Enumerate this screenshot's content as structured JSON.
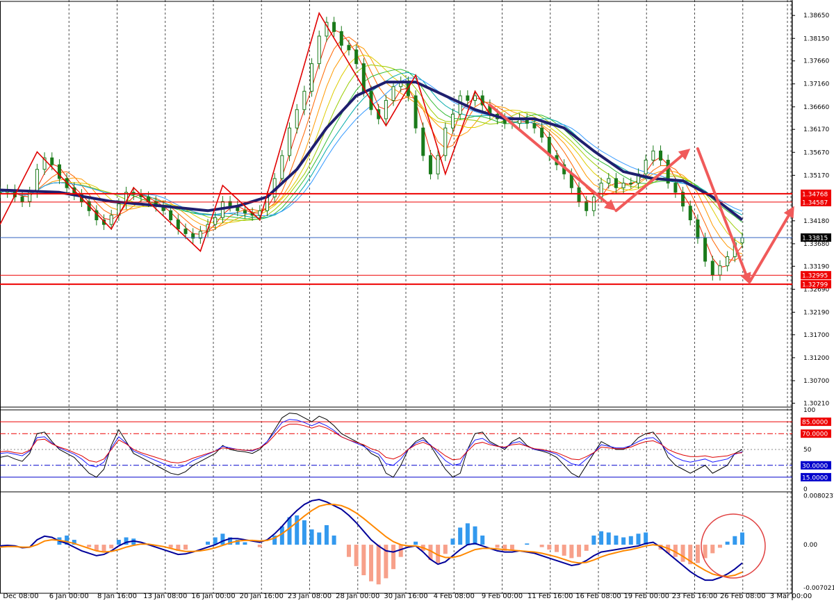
{
  "chart_data": [
    {
      "type": "candlestick",
      "panel": "price",
      "ylim": [
        1.30125,
        1.38895
      ],
      "y_ticks": [
        "1.38650",
        "1.38150",
        "1.37660",
        "1.37160",
        "1.36660",
        "1.36170",
        "1.35670",
        "1.35170",
        "1.34180",
        "1.33680",
        "1.33190",
        "1.32690",
        "1.32190",
        "1.31700",
        "1.31200",
        "1.30700",
        "1.30210"
      ],
      "time_labels": [
        "Dec 08:00",
        "6 Jan 00:00",
        "8 Jan 16:00",
        "13 Jan 08:00",
        "16 Jan 00:00",
        "20 Jan 16:00",
        "23 Jan 08:00",
        "28 Jan 00:00",
        "30 Jan 16:00",
        "4 Feb 08:00",
        "9 Feb 00:00",
        "11 Feb 16:00",
        "16 Feb 08:00",
        "19 Feb 00:00",
        "23 Feb 16:00",
        "26 Feb 08:00",
        "3 Mar 00:00"
      ],
      "close_path": [
        1.348,
        1.3485,
        1.347,
        1.346,
        1.348,
        1.353,
        1.3555,
        1.354,
        1.351,
        1.349,
        1.3475,
        1.346,
        1.344,
        1.342,
        1.341,
        1.343,
        1.3455,
        1.348,
        1.3475,
        1.347,
        1.346,
        1.345,
        1.344,
        1.342,
        1.34,
        1.339,
        1.338,
        1.3395,
        1.341,
        1.3425,
        1.346,
        1.345,
        1.344,
        1.3435,
        1.343,
        1.344,
        1.347,
        1.351,
        1.356,
        1.362,
        1.366,
        1.37,
        1.376,
        1.382,
        1.385,
        1.383,
        1.38,
        1.379,
        1.376,
        1.37,
        1.366,
        1.364,
        1.368,
        1.371,
        1.372,
        1.369,
        1.362,
        1.356,
        1.352,
        1.356,
        1.362,
        1.365,
        1.369,
        1.368,
        1.369,
        1.367,
        1.365,
        1.364,
        1.363,
        1.363,
        1.364,
        1.363,
        1.362,
        1.36,
        1.356,
        1.354,
        1.352,
        1.349,
        1.346,
        1.344,
        1.347,
        1.35,
        1.351,
        1.349,
        1.35,
        1.35,
        1.352,
        1.355,
        1.357,
        1.355,
        1.35,
        1.348,
        1.345,
        1.342,
        1.338,
        1.333,
        1.33,
        1.332,
        1.334,
        1.337,
        1.3381
      ],
      "moving_averages": [
        {
          "name": "",
          "color": "#1f1f6e",
          "width": 4,
          "points": [
            [
              0,
              1.3485
            ],
            [
              8,
              1.348
            ],
            [
              15,
              1.346
            ],
            [
              22,
              1.345
            ],
            [
              28,
              1.344
            ],
            [
              32,
              1.345
            ],
            [
              36,
              1.347
            ],
            [
              40,
              1.353
            ],
            [
              44,
              1.362
            ],
            [
              48,
              1.369
            ],
            [
              52,
              1.372
            ],
            [
              56,
              1.372
            ],
            [
              60,
              1.369
            ],
            [
              64,
              1.366
            ],
            [
              68,
              1.364
            ],
            [
              72,
              1.364
            ],
            [
              76,
              1.362
            ],
            [
              80,
              1.357
            ],
            [
              84,
              1.3525
            ],
            [
              88,
              1.351
            ],
            [
              92,
              1.3505
            ],
            [
              96,
              1.347
            ],
            [
              100,
              1.342
            ]
          ]
        }
      ],
      "horizontal_levels": [
        {
          "value": 1.34768,
          "label": "1.34768",
          "color": "#ee0000",
          "width": 2
        },
        {
          "value": 1.34587,
          "label": "1.34587",
          "color": "#ee0000",
          "width": 1
        },
        {
          "value": 1.33815,
          "label": "1.33815",
          "color": "#3060c0",
          "width": 1,
          "current": true
        },
        {
          "value": 1.32995,
          "label": "1.32995",
          "color": "#ee0000",
          "width": 1
        },
        {
          "value": 1.32799,
          "label": "1.32799",
          "color": "#ee0000",
          "width": 2
        }
      ],
      "zigzag": [
        [
          0,
          1.341
        ],
        [
          5,
          1.3568
        ],
        [
          15,
          1.34
        ],
        [
          18,
          1.349
        ],
        [
          27,
          1.3352
        ],
        [
          30,
          1.3495
        ],
        [
          35,
          1.342
        ],
        [
          43,
          1.387
        ],
        [
          52,
          1.3625
        ],
        [
          56,
          1.3735
        ],
        [
          60,
          1.352
        ],
        [
          64,
          1.37
        ],
        [
          66,
          1.365
        ]
      ],
      "arrows": [
        {
          "from": [
            66,
            1.367
          ],
          "to": [
            83,
            1.344
          ]
        },
        {
          "from": [
            83,
            1.344
          ],
          "to": [
            93,
            1.3575
          ]
        },
        {
          "from": [
            94,
            1.3575
          ],
          "to": [
            101,
            1.328
          ]
        },
        {
          "from": [
            101,
            1.3285
          ],
          "to": [
            107,
            1.345
          ]
        }
      ]
    },
    {
      "type": "line",
      "panel": "oscillator",
      "ylim": [
        0,
        100
      ],
      "y_ticks": [
        "100",
        "50",
        "0"
      ],
      "levels": [
        {
          "value": 85,
          "label": "85.0000",
          "color": "#ee0000"
        },
        {
          "value": 70,
          "label": "70.0000",
          "color": "#ee0000"
        },
        {
          "value": 30,
          "label": "30.0000",
          "color": "#0000cc"
        },
        {
          "value": 15,
          "label": "15.0000",
          "color": "#0000cc"
        }
      ],
      "series": [
        {
          "color": "#000000",
          "values": [
            40,
            42,
            38,
            35,
            45,
            70,
            72,
            60,
            50,
            45,
            40,
            30,
            20,
            15,
            25,
            55,
            75,
            60,
            45,
            40,
            35,
            30,
            25,
            20,
            18,
            22,
            30,
            35,
            40,
            45,
            55,
            50,
            48,
            47,
            45,
            50,
            60,
            75,
            90,
            96,
            95,
            90,
            85,
            92,
            88,
            80,
            70,
            65,
            60,
            55,
            45,
            40,
            20,
            15,
            30,
            50,
            60,
            65,
            55,
            40,
            25,
            15,
            20,
            50,
            70,
            72,
            60,
            55,
            50,
            60,
            65,
            55,
            50,
            48,
            45,
            40,
            30,
            20,
            15,
            30,
            45,
            60,
            55,
            50,
            50,
            55,
            65,
            70,
            72,
            60,
            40,
            30,
            25,
            20,
            25,
            30,
            20,
            25,
            30,
            45,
            50
          ]
        },
        {
          "color": "#1a1aff",
          "values": [
            45,
            46,
            44,
            42,
            48,
            65,
            66,
            58,
            52,
            48,
            44,
            38,
            30,
            28,
            34,
            52,
            66,
            58,
            48,
            44,
            40,
            36,
            32,
            28,
            27,
            30,
            36,
            40,
            44,
            48,
            54,
            52,
            50,
            49,
            48,
            52,
            60,
            72,
            84,
            88,
            87,
            84,
            80,
            84,
            80,
            74,
            66,
            62,
            58,
            54,
            48,
            44,
            32,
            30,
            38,
            50,
            58,
            62,
            56,
            46,
            36,
            30,
            32,
            50,
            62,
            64,
            58,
            54,
            52,
            58,
            60,
            54,
            50,
            49,
            47,
            44,
            38,
            32,
            30,
            38,
            46,
            56,
            54,
            52,
            52,
            55,
            60,
            64,
            65,
            58,
            46,
            40,
            36,
            34,
            36,
            38,
            34,
            36,
            38,
            44,
            47
          ]
        },
        {
          "color": "#dd0000",
          "values": [
            47,
            48,
            46,
            45,
            49,
            62,
            63,
            57,
            53,
            50,
            46,
            42,
            36,
            34,
            38,
            50,
            62,
            57,
            50,
            46,
            43,
            40,
            37,
            34,
            33,
            35,
            39,
            42,
            45,
            48,
            52,
            51,
            50,
            49,
            49,
            52,
            58,
            68,
            78,
            82,
            82,
            80,
            77,
            80,
            77,
            72,
            66,
            62,
            59,
            56,
            51,
            48,
            40,
            38,
            42,
            50,
            56,
            59,
            55,
            49,
            42,
            37,
            38,
            48,
            57,
            59,
            56,
            54,
            53,
            56,
            57,
            54,
            51,
            50,
            48,
            46,
            42,
            38,
            37,
            41,
            46,
            53,
            52,
            51,
            51,
            53,
            57,
            60,
            61,
            57,
            50,
            46,
            43,
            41,
            41,
            42,
            40,
            41,
            42,
            45,
            46
          ]
        }
      ]
    },
    {
      "type": "bar",
      "panel": "macd",
      "ylim": [
        -0.0075,
        0.0082
      ],
      "y_ticks": [
        "0.0080237",
        "0.00",
        "-0.007021"
      ],
      "histogram": [
        0,
        0,
        0,
        0,
        0,
        0,
        0,
        0,
        0.0012,
        0.0015,
        0.0008,
        0,
        -0.0004,
        -0.001,
        -0.0012,
        -0.0006,
        0.0008,
        0.0012,
        0.001,
        0,
        0,
        0,
        0,
        -0.0005,
        -0.001,
        -0.0008,
        0,
        0,
        0.0005,
        0.0012,
        0.0018,
        0.0012,
        0.0008,
        0.0004,
        0,
        -0.0004,
        0,
        0.0015,
        0.003,
        0.0045,
        0.0048,
        0.004,
        0.0025,
        0.002,
        0.0032,
        0.0015,
        0,
        -0.002,
        -0.0035,
        -0.005,
        -0.006,
        -0.0065,
        -0.0055,
        -0.004,
        -0.002,
        0,
        0.0005,
        -0.001,
        -0.0025,
        -0.003,
        -0.0015,
        0.001,
        0.0028,
        0.0035,
        0.003,
        0.0015,
        0,
        -0.0005,
        -0.001,
        -0.0008,
        0,
        0.0002,
        0,
        -0.0004,
        -0.0008,
        -0.0012,
        -0.0018,
        -0.0022,
        -0.002,
        -0.001,
        0.0015,
        0.0022,
        0.002,
        0.0015,
        0.0012,
        0.0014,
        0.0018,
        0.002,
        0,
        -0.0008,
        -0.0014,
        -0.002,
        -0.0028,
        -0.0032,
        -0.003,
        -0.0022,
        -0.0014,
        -0.0005,
        0.0005,
        0.0014,
        0.002
      ],
      "series": [
        {
          "color": "#000099",
          "values": [
            -0.0002,
            -0.0001,
            -0.0002,
            -0.0005,
            -0.0004,
            0.0008,
            0.0014,
            0.0012,
            0.0006,
            0.0002,
            -0.0004,
            -0.001,
            -0.0014,
            -0.0018,
            -0.0016,
            -0.001,
            -0.0002,
            0.0004,
            0.0006,
            0.0004,
            0,
            -0.0004,
            -0.0008,
            -0.0012,
            -0.0016,
            -0.0015,
            -0.0012,
            -0.0008,
            -0.0004,
            0,
            0.0006,
            0.001,
            0.001,
            0.0008,
            0.0006,
            0.0004,
            0.0008,
            0.0018,
            0.003,
            0.0044,
            0.0056,
            0.0066,
            0.0072,
            0.0074,
            0.007,
            0.0064,
            0.0058,
            0.0048,
            0.0036,
            0.0022,
            0.0008,
            -0.0002,
            -0.001,
            -0.0012,
            -0.0008,
            -0.0004,
            -0.0002,
            -0.0012,
            -0.0024,
            -0.0032,
            -0.0028,
            -0.0018,
            -0.0008,
            0,
            0.0002,
            -0.0002,
            -0.0006,
            -0.001,
            -0.0012,
            -0.0012,
            -0.001,
            -0.0012,
            -0.0014,
            -0.0018,
            -0.0022,
            -0.0026,
            -0.003,
            -0.0034,
            -0.0032,
            -0.0026,
            -0.0018,
            -0.0012,
            -0.001,
            -0.0008,
            -0.0006,
            -0.0004,
            -0.0002,
            0.0002,
            0.0004,
            -0.0004,
            -0.0014,
            -0.0024,
            -0.0034,
            -0.0044,
            -0.0052,
            -0.0058,
            -0.0058,
            -0.0054,
            -0.0048,
            -0.004,
            -0.003
          ]
        },
        {
          "color": "#ff8800",
          "values": [
            -0.0004,
            -0.0003,
            -0.0003,
            -0.0004,
            -0.0004,
            0,
            0.0006,
            0.0008,
            0.0007,
            0.0005,
            0.0002,
            -0.0002,
            -0.0006,
            -0.001,
            -0.0012,
            -0.0011,
            -0.0008,
            -0.0004,
            -0.0001,
            0.0001,
            0.0001,
            -0.0001,
            -0.0003,
            -0.0006,
            -0.0009,
            -0.0011,
            -0.0011,
            -0.001,
            -0.0008,
            -0.0005,
            -0.0001,
            0.0003,
            0.0006,
            0.0007,
            0.0007,
            0.0006,
            0.0007,
            0.0011,
            0.0018,
            0.0027,
            0.0037,
            0.0047,
            0.0056,
            0.0063,
            0.0066,
            0.0066,
            0.0064,
            0.0059,
            0.0052,
            0.0043,
            0.0033,
            0.0023,
            0.0013,
            0.0005,
            0,
            -0.0002,
            -0.0002,
            -0.0005,
            -0.001,
            -0.0017,
            -0.0021,
            -0.0021,
            -0.0018,
            -0.0013,
            -0.0008,
            -0.0006,
            -0.0006,
            -0.0007,
            -0.0008,
            -0.0009,
            -0.001,
            -0.0011,
            -0.0012,
            -0.0014,
            -0.0017,
            -0.002,
            -0.0024,
            -0.0028,
            -0.003,
            -0.0029,
            -0.0025,
            -0.002,
            -0.0016,
            -0.0013,
            -0.001,
            -0.0008,
            -0.0005,
            -0.0002,
            0,
            -0.0002,
            -0.0006,
            -0.0012,
            -0.0019,
            -0.0027,
            -0.0035,
            -0.0042,
            -0.0048,
            -0.0051,
            -0.0052,
            -0.005,
            -0.0045
          ]
        }
      ]
    }
  ],
  "colors": {
    "candle": "#1a7a1a",
    "zigzag": "#e00000",
    "arrows": "#f05a5a",
    "ribbon": [
      "#ee2200",
      "#ff6600",
      "#ff9900",
      "#ddcc00",
      "#99cc00",
      "#33bb33",
      "#00aaaa",
      "#3399ff"
    ],
    "grid": "#000000",
    "annotation_circle": "#e04040",
    "hist_pos": "#3399ee",
    "hist_neg": "#f7a08a"
  }
}
